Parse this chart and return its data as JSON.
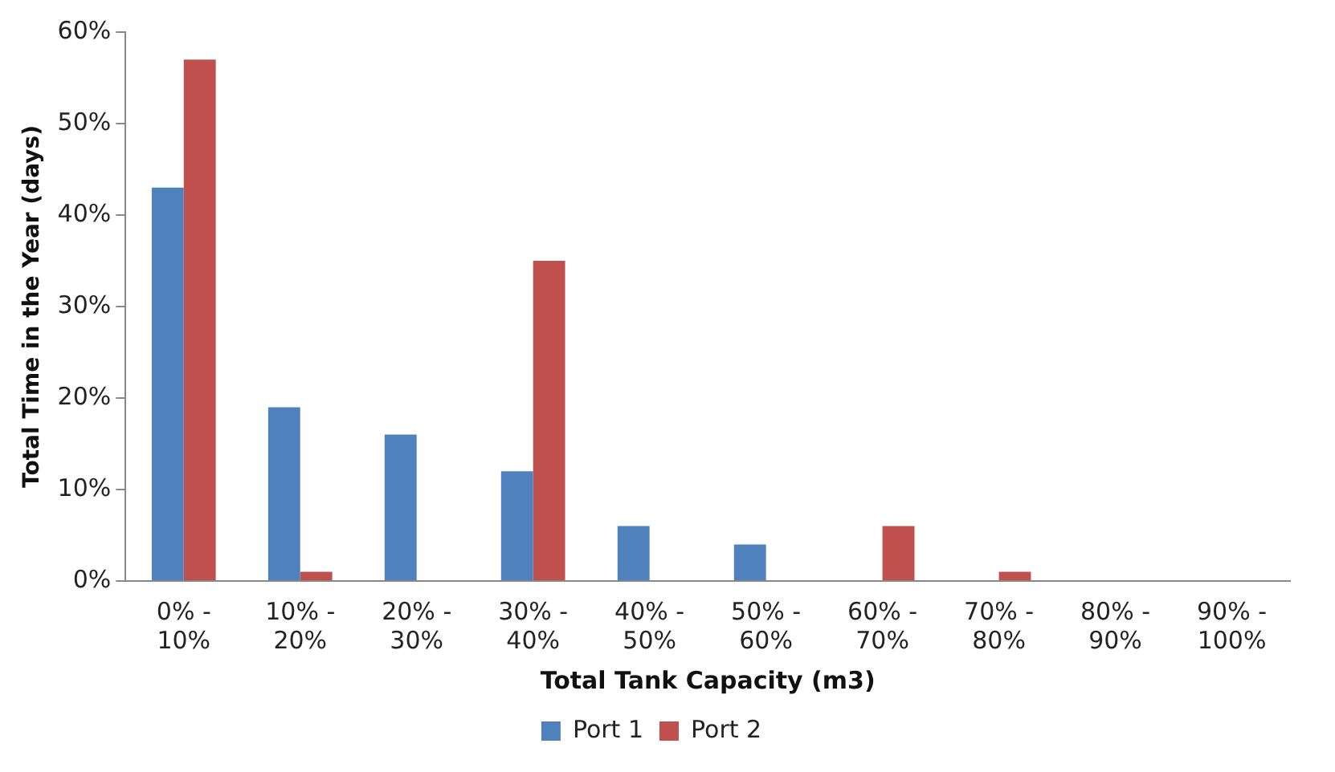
{
  "chart_data": {
    "type": "bar",
    "xlabel": "Total Tank Capacity (m3)",
    "ylabel": "Total Time in the Year (days)",
    "categories": [
      "0% - 10%",
      "10% - 20%",
      "20% - 30%",
      "30% - 40%",
      "40% - 50%",
      "50% - 60%",
      "60% - 70%",
      "70% - 80%",
      "80% - 90%",
      "90% - 100%"
    ],
    "series": [
      {
        "name": "Port 1",
        "color": "#4f81bd",
        "values": [
          43,
          19,
          16,
          12,
          6,
          4,
          0,
          0,
          0,
          0
        ]
      },
      {
        "name": "Port 2",
        "color": "#c0504d",
        "values": [
          57,
          1,
          0,
          35,
          0,
          0,
          6,
          1,
          0,
          0
        ]
      }
    ],
    "ylim": [
      0,
      60
    ],
    "yticks": [
      {
        "value": 0,
        "label": "0%"
      },
      {
        "value": 10,
        "label": "10%"
      },
      {
        "value": 20,
        "label": "20%"
      },
      {
        "value": 30,
        "label": "30%"
      },
      {
        "value": 40,
        "label": "40%"
      },
      {
        "value": 50,
        "label": "50%"
      },
      {
        "value": 60,
        "label": "60%"
      }
    ],
    "grid": false,
    "legend": "bottom"
  }
}
